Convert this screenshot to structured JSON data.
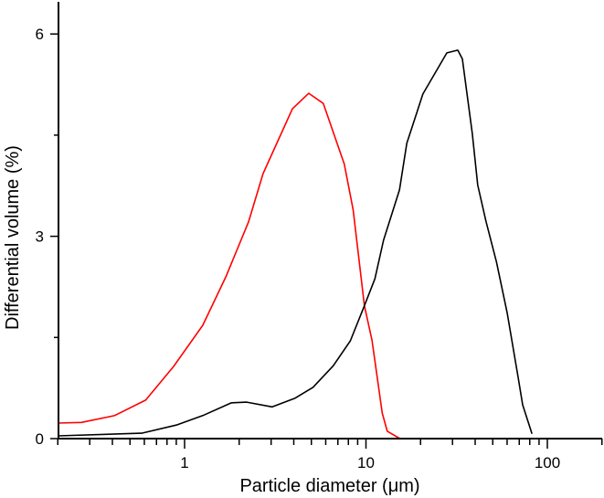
{
  "chart_data": {
    "type": "line",
    "title": "",
    "xlabel": "Particle diameter (μm)",
    "ylabel": "Differential volume (%)",
    "xscale": "log",
    "xlim": [
      0.2,
      200
    ],
    "ylim": [
      0,
      6.6
    ],
    "x_ticks": [
      1,
      10,
      100
    ],
    "x_tick_labels": [
      "1",
      "10",
      "100"
    ],
    "y_ticks": [
      0,
      3,
      6
    ],
    "y_tick_labels": [
      "0",
      "3",
      "6"
    ],
    "y_minor_ticks": [
      1.5,
      4.5
    ],
    "grid": false,
    "legend": null,
    "series": [
      {
        "name": "red curve",
        "color": "#ff0000",
        "x": [
          0.2,
          0.27,
          0.41,
          0.61,
          0.87,
          1.26,
          1.69,
          2.25,
          2.71,
          3.93,
          4.84,
          5.82,
          7.6,
          8.5,
          9.8,
          10.8,
          12.3,
          13.1,
          15.4
        ],
        "y": [
          0.23,
          0.24,
          0.34,
          0.57,
          1.07,
          1.68,
          2.4,
          3.21,
          3.93,
          4.89,
          5.12,
          4.97,
          4.07,
          3.39,
          1.97,
          1.46,
          0.38,
          0.11,
          0.0
        ]
      },
      {
        "name": "black curve",
        "color": "#000000",
        "x": [
          0.2,
          0.58,
          0.9,
          1.28,
          1.81,
          2.2,
          3.04,
          4.07,
          5.1,
          6.6,
          8.2,
          9.7,
          11.2,
          12.5,
          15.3,
          16.8,
          20.6,
          27.9,
          32.1,
          34.0,
          38.6,
          41.3,
          45.9,
          52.4,
          60.1,
          69.0,
          73.1,
          82.3
        ],
        "y": [
          0.04,
          0.08,
          0.2,
          0.35,
          0.53,
          0.54,
          0.47,
          0.6,
          0.76,
          1.08,
          1.45,
          1.94,
          2.37,
          2.94,
          3.69,
          4.38,
          5.11,
          5.72,
          5.76,
          5.63,
          4.52,
          3.76,
          3.22,
          2.62,
          1.86,
          0.91,
          0.5,
          0.07
        ]
      }
    ]
  }
}
